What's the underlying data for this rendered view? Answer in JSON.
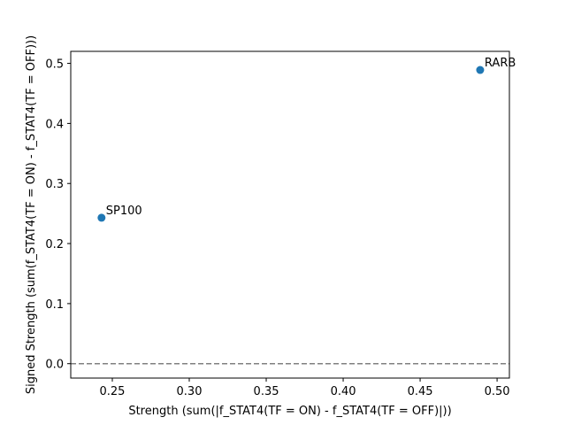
{
  "chart_data": {
    "type": "scatter",
    "title": "",
    "xlabel": "Strength (sum(|f_STAT4(TF = ON) - f_STAT4(TF = OFF)|))",
    "ylabel": "Signed Strength (sum(f_STAT4(TF = ON) - f_STAT4(TF = OFF)))",
    "xlim": [
      0.223,
      0.508
    ],
    "ylim": [
      -0.024,
      0.52
    ],
    "xticks": [
      0.25,
      0.3,
      0.35,
      0.4,
      0.45,
      0.5
    ],
    "xtick_labels": [
      "0.25",
      "0.30",
      "0.35",
      "0.40",
      "0.45",
      "0.50"
    ],
    "yticks": [
      0.0,
      0.1,
      0.2,
      0.3,
      0.4,
      0.5
    ],
    "ytick_labels": [
      "0.0",
      "0.1",
      "0.2",
      "0.3",
      "0.4",
      "0.5"
    ],
    "grid": false,
    "reference_line": {
      "y": 0.0,
      "style": "dashed",
      "color": "#808080"
    },
    "point_color": "#1f77b4",
    "points": [
      {
        "label": "SP100",
        "x": 0.243,
        "y": 0.243
      },
      {
        "label": "RARB",
        "x": 0.489,
        "y": 0.489
      }
    ]
  }
}
